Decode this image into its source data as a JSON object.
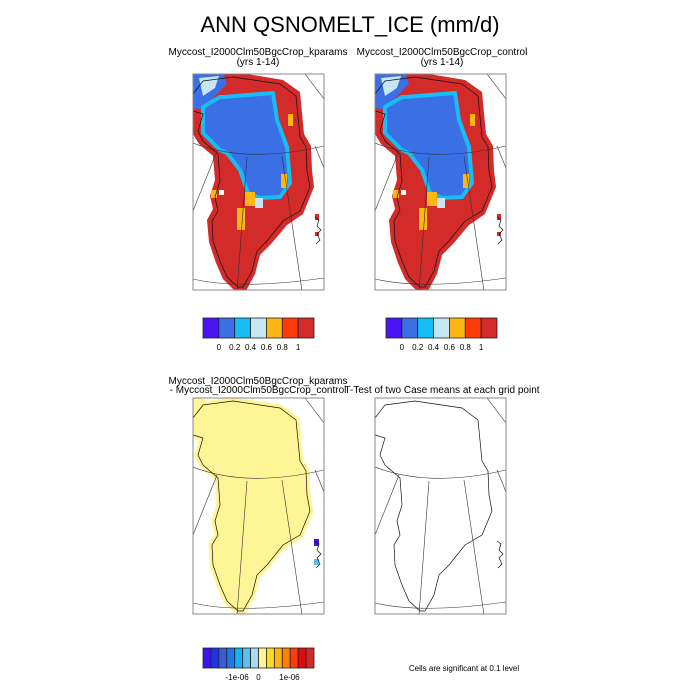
{
  "title": "ANN QSNOMELT_ICE (mm/d)",
  "panels": {
    "top_left": {
      "title": "Myccost_I2000Clm50BgcCrop_kparams",
      "subtitle": "(yrs 1-14)"
    },
    "top_right": {
      "title": "Myccost_I2000Clm50BgcCrop_control",
      "subtitle": "(yrs 1-14)"
    },
    "bottom_left": {
      "title_line1": "Myccost_I2000Clm50BgcCrop_kparams",
      "title_line2": "- Myccost_I2000Clm50BgcCrop_control"
    },
    "bottom_right": {
      "title": "T-Test of two Case means at each grid point",
      "note": "Cells are significant at 0.1 level"
    }
  },
  "colorbars": {
    "field": {
      "colors": [
        "#4a14f5",
        "#3b6fe6",
        "#16bef5",
        "#c7e6f5",
        "#fdb714",
        "#ff3a0a",
        "#d32a2a"
      ],
      "labels": [
        "0",
        "0.2",
        "0.4",
        "0.6",
        "0.8",
        "1"
      ]
    },
    "difference": {
      "colors": [
        "#3c14f0",
        "#1e32e6",
        "#3c5ad2",
        "#1e78ec",
        "#10b4f8",
        "#60bce8",
        "#aadcf0",
        "#fff596",
        "#fed92a",
        "#fcb414",
        "#fe8200",
        "#ff3c0a",
        "#e00a0a",
        "#d22828"
      ],
      "labels": [
        "-1e-06",
        "0",
        "1e-06"
      ]
    }
  }
}
